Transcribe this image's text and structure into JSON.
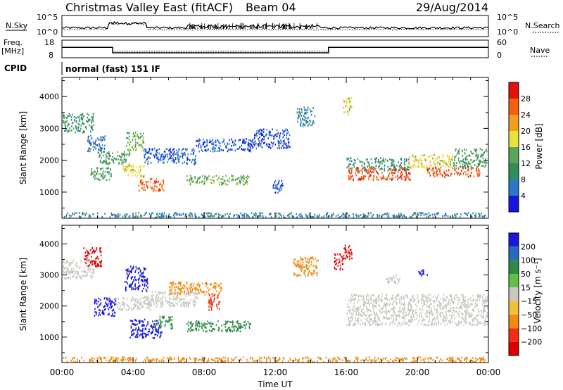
{
  "header": {
    "title": "Christmas Valley East (fitACF)",
    "beam": "Beam 04",
    "date": "29/Aug/2014"
  },
  "chart_data": [
    {
      "type": "line",
      "name": "noise-panel",
      "ylabel_left": "N.Sky",
      "ylabel_right": "N.Search",
      "left_ticks": [
        "10^5",
        "10^0"
      ],
      "right_ticks": [
        "10^5",
        "10^0"
      ],
      "xlim": [
        0,
        24
      ],
      "series": [
        {
          "name": "N.Sky",
          "style": "solid"
        },
        {
          "name": "N.Search",
          "style": "dotted"
        }
      ]
    },
    {
      "type": "line",
      "name": "freq-panel",
      "ylabel_left": "Freq.\n[MHz]",
      "ylabel_right": "Nave",
      "left_ticks": [
        18,
        8
      ],
      "right_ticks": [
        60,
        0
      ],
      "xlim": [
        0,
        24
      ],
      "freq": {
        "x": [
          0,
          2.85,
          2.85,
          15.0,
          15.0,
          24
        ],
        "y": [
          13.9,
          13.9,
          10.8,
          10.8,
          13.9,
          13.9
        ]
      },
      "nave": {
        "x": [
          0,
          2.85,
          2.85,
          15.0,
          15.0,
          24
        ],
        "y": [
          36,
          36,
          22,
          22,
          36,
          36
        ]
      }
    },
    {
      "type": "heatmap",
      "name": "power-panel",
      "ylabel": "Slant Range [km]",
      "yticks": [
        1000,
        2000,
        3000,
        4000
      ],
      "ylim": [
        180,
        4600
      ],
      "xlim": [
        0,
        24
      ],
      "colorbar": {
        "label": "Power [dB]",
        "ticks": [
          "4",
          "8",
          "12",
          "16",
          "20",
          "24",
          "28"
        ]
      },
      "regions": [
        {
          "x0": 0.0,
          "x1": 1.8,
          "y0": 2900,
          "y1": 3500,
          "power": 10
        },
        {
          "x0": 1.4,
          "x1": 2.4,
          "y0": 2300,
          "y1": 2800,
          "power": 6
        },
        {
          "x0": 2.0,
          "x1": 3.8,
          "y0": 1900,
          "y1": 2300,
          "power": 11
        },
        {
          "x0": 1.6,
          "x1": 2.8,
          "y0": 1400,
          "y1": 1800,
          "power": 12
        },
        {
          "x0": 3.4,
          "x1": 4.6,
          "y0": 1500,
          "y1": 1900,
          "power": 18
        },
        {
          "x0": 4.3,
          "x1": 5.7,
          "y0": 1050,
          "y1": 1450,
          "power": 26
        },
        {
          "x0": 3.6,
          "x1": 4.6,
          "y0": 2300,
          "y1": 2900,
          "power": 14
        },
        {
          "x0": 4.6,
          "x1": 7.5,
          "y0": 1900,
          "y1": 2400,
          "power": 5
        },
        {
          "x0": 7.5,
          "x1": 10.8,
          "y0": 2300,
          "y1": 2700,
          "power": 5
        },
        {
          "x0": 7.0,
          "x1": 10.5,
          "y0": 1250,
          "y1": 1550,
          "power": 14
        },
        {
          "x0": 10.8,
          "x1": 12.8,
          "y0": 2400,
          "y1": 3000,
          "power": 4
        },
        {
          "x0": 13.2,
          "x1": 14.2,
          "y0": 3100,
          "y1": 3700,
          "power": 7
        },
        {
          "x0": 11.8,
          "x1": 12.4,
          "y0": 1000,
          "y1": 1400,
          "power": 5
        },
        {
          "x0": 15.8,
          "x1": 16.3,
          "y0": 3400,
          "y1": 4000,
          "power": 18
        },
        {
          "x0": 16.0,
          "x1": 19.5,
          "y0": 1700,
          "y1": 2100,
          "power": 10
        },
        {
          "x0": 16.1,
          "x1": 19.6,
          "y0": 1400,
          "y1": 1800,
          "power": 27
        },
        {
          "x0": 19.5,
          "x1": 22.0,
          "y0": 1800,
          "y1": 2200,
          "power": 18
        },
        {
          "x0": 20.5,
          "x1": 23.5,
          "y0": 1500,
          "y1": 1800,
          "power": 27
        },
        {
          "x0": 22.0,
          "x1": 24.0,
          "y0": 1800,
          "y1": 2400,
          "power": 12
        },
        {
          "x0": 0.0,
          "x1": 24.0,
          "y0": 200,
          "y1": 380,
          "power": 7
        }
      ]
    },
    {
      "type": "heatmap",
      "name": "velocity-panel",
      "ylabel": "Slant Range [km]",
      "yticks": [
        1000,
        2000,
        3000,
        4000
      ],
      "ylim": [
        180,
        4600
      ],
      "xlim": [
        0,
        24
      ],
      "xticks": [
        "00:00",
        "04:00",
        "08:00",
        "12:00",
        "16:00",
        "20:00",
        "00:00"
      ],
      "xlabel": "Time UT",
      "colorbar": {
        "label": "Velocity [m s⁻¹]",
        "ticks": [
          "200",
          "100",
          "50",
          "15",
          "−15",
          "−50",
          "−100",
          "−200"
        ]
      },
      "regions": [
        {
          "x0": 0.0,
          "x1": 1.8,
          "y0": 2900,
          "y1": 3500,
          "velocity": 0
        },
        {
          "x0": 1.2,
          "x1": 2.2,
          "y0": 3300,
          "y1": 3900,
          "velocity": -220
        },
        {
          "x0": 1.8,
          "x1": 3.0,
          "y0": 1700,
          "y1": 2300,
          "velocity": 220
        },
        {
          "x0": 3.0,
          "x1": 5.0,
          "y0": 1900,
          "y1": 2300,
          "velocity": 0
        },
        {
          "x0": 3.5,
          "x1": 4.8,
          "y0": 2500,
          "y1": 3300,
          "velocity": 220
        },
        {
          "x0": 3.8,
          "x1": 5.6,
          "y0": 1000,
          "y1": 1600,
          "velocity": 200
        },
        {
          "x0": 5.2,
          "x1": 6.2,
          "y0": 1300,
          "y1": 1700,
          "velocity": 60
        },
        {
          "x0": 4.6,
          "x1": 7.6,
          "y0": 2000,
          "y1": 2500,
          "velocity": 0
        },
        {
          "x0": 6.0,
          "x1": 9.0,
          "y0": 2400,
          "y1": 2800,
          "velocity": -60
        },
        {
          "x0": 7.0,
          "x1": 10.6,
          "y0": 1200,
          "y1": 1550,
          "velocity": 60
        },
        {
          "x0": 8.2,
          "x1": 8.9,
          "y0": 1900,
          "y1": 2400,
          "velocity": -120
        },
        {
          "x0": 13.0,
          "x1": 14.4,
          "y0": 3000,
          "y1": 3600,
          "velocity": -60
        },
        {
          "x0": 15.3,
          "x1": 15.8,
          "y0": 3200,
          "y1": 3700,
          "velocity": -220
        },
        {
          "x0": 15.8,
          "x1": 16.3,
          "y0": 3500,
          "y1": 4000,
          "velocity": -200
        },
        {
          "x0": 16.0,
          "x1": 24.0,
          "y0": 1400,
          "y1": 2400,
          "velocity": 0
        },
        {
          "x0": 18.2,
          "x1": 19.0,
          "y0": 2700,
          "y1": 3000,
          "velocity": 0
        },
        {
          "x0": 20.0,
          "x1": 20.6,
          "y0": 3000,
          "y1": 3200,
          "velocity": 200
        },
        {
          "x0": 0.0,
          "x1": 24.0,
          "y0": 200,
          "y1": 380,
          "velocity": -50
        }
      ]
    }
  ],
  "cpid": {
    "label": "CPID",
    "program": "normal (fast) 151 IF"
  },
  "colors": {
    "power": [
      "#1616e0",
      "#2a78c8",
      "#2f8f5a",
      "#5aa35a",
      "#e8e23a",
      "#f0a020",
      "#f26010",
      "#e01010"
    ],
    "velocity": [
      "#1a1ad8",
      "#2a6abe",
      "#2f8a4a",
      "#60c048",
      "#c8c8c0",
      "#f0c040",
      "#f08a10",
      "#ee3010",
      "#e00000"
    ]
  }
}
